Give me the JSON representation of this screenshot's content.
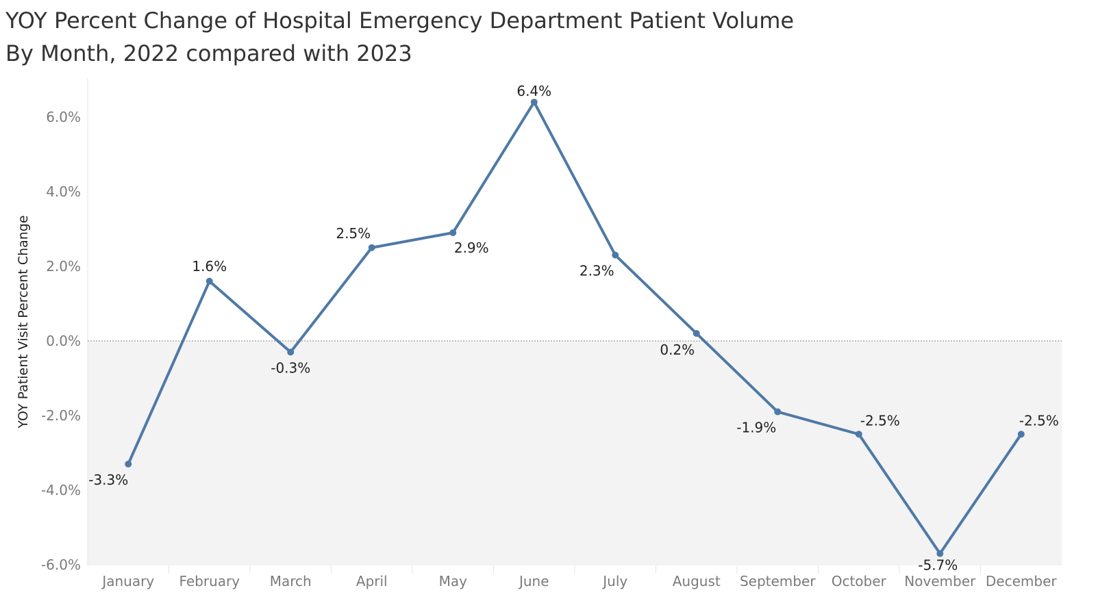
{
  "title": "YOY Percent Change of Hospital Emergency Department Patient Volume",
  "subtitle": "By Month, 2022 compared with 2023",
  "chart_data": {
    "type": "line",
    "title": "YOY Percent Change of Hospital Emergency Department Patient Volume",
    "subtitle": "By Month, 2022 compared with 2023",
    "xlabel": "",
    "ylabel": "YOY Patient Visit Percent Change",
    "categories": [
      "January",
      "February",
      "March",
      "April",
      "May",
      "June",
      "July",
      "August",
      "September",
      "October",
      "November",
      "December"
    ],
    "series": [
      {
        "name": "YOY Patient Visit Percent Change",
        "values": [
          -3.3,
          1.6,
          -0.3,
          2.5,
          2.9,
          6.4,
          2.3,
          0.2,
          -1.9,
          -2.5,
          -5.7,
          -2.5
        ],
        "labels": [
          "-3.3%",
          "1.6%",
          "-0.3%",
          "2.5%",
          "2.9%",
          "6.4%",
          "2.3%",
          "0.2%",
          "-1.9%",
          "-2.5%",
          "-5.7%",
          "-2.5%"
        ]
      }
    ],
    "ylim": [
      -6.4,
      7.0
    ],
    "yticks": [
      6.0,
      4.0,
      2.0,
      0.0,
      -2.0,
      -4.0,
      -6.0
    ],
    "ytick_labels": [
      "6.0%",
      "4.0%",
      "2.0%",
      "0.0%",
      "-2.0%",
      "-4.0%",
      "-6.0%"
    ],
    "reference_line": 0.0,
    "negative_region_shaded": true,
    "grid": false,
    "colors": {
      "line": "#4e79a7",
      "negative_band": "#f3f3f3",
      "zero_line": "#8a8a8a",
      "axis_text": "#7a7a7a",
      "label_text": "#222222"
    }
  }
}
